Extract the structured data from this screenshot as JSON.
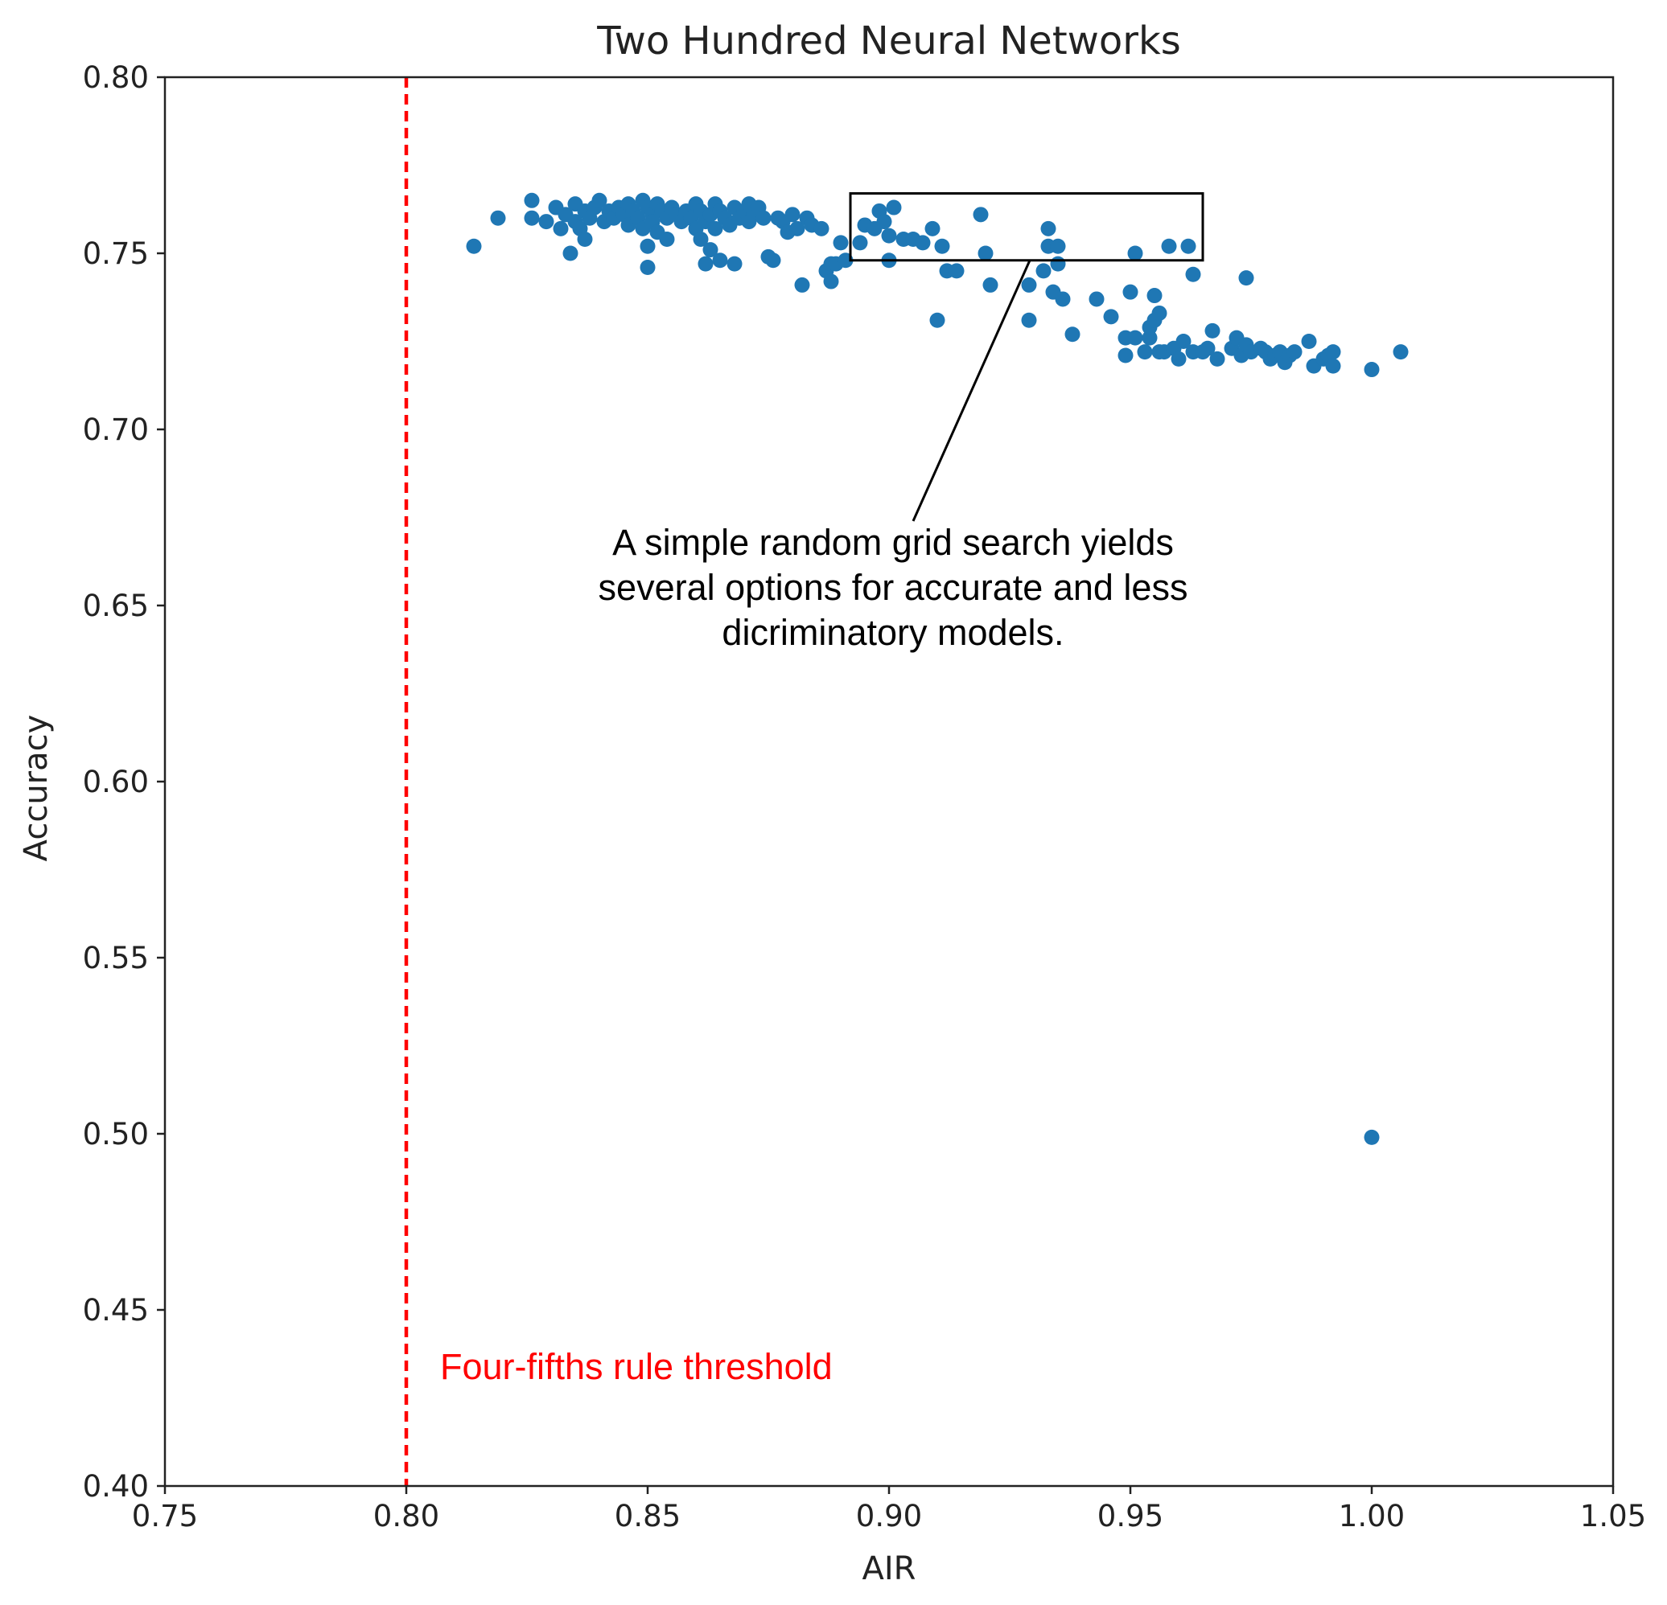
{
  "chart_data": {
    "type": "scatter",
    "title": "Two Hundred Neural Networks",
    "xlabel": "AIR",
    "ylabel": "Accuracy",
    "xlim": [
      0.75,
      1.05
    ],
    "ylim": [
      0.4,
      0.8
    ],
    "xticks": [
      "0.75",
      "0.80",
      "0.85",
      "0.90",
      "0.95",
      "1.00",
      "1.05"
    ],
    "yticks": [
      "0.40",
      "0.45",
      "0.50",
      "0.55",
      "0.60",
      "0.65",
      "0.70",
      "0.75",
      "0.80"
    ],
    "grid": false,
    "marker_color": "#1f77b4",
    "threshold": {
      "x": 0.8,
      "label": "Four-fifths rule threshold",
      "color": "#ff0000",
      "style": "dashed"
    },
    "highlight_box": {
      "x_range": [
        0.892,
        0.965
      ],
      "y_range": [
        0.748,
        0.767
      ]
    },
    "annotation": {
      "lines": [
        "A simple random grid search yields",
        "several options for accurate and less",
        "dicriminatory models."
      ]
    },
    "points": [
      [
        0.814,
        0.752
      ],
      [
        0.819,
        0.76
      ],
      [
        0.826,
        0.765
      ],
      [
        0.826,
        0.76
      ],
      [
        0.829,
        0.759
      ],
      [
        0.831,
        0.763
      ],
      [
        0.832,
        0.757
      ],
      [
        0.833,
        0.761
      ],
      [
        0.834,
        0.75
      ],
      [
        0.835,
        0.764
      ],
      [
        0.835,
        0.759
      ],
      [
        0.836,
        0.757
      ],
      [
        0.837,
        0.762
      ],
      [
        0.837,
        0.754
      ],
      [
        0.838,
        0.76
      ],
      [
        0.839,
        0.763
      ],
      [
        0.84,
        0.765
      ],
      [
        0.841,
        0.759
      ],
      [
        0.842,
        0.762
      ],
      [
        0.843,
        0.76
      ],
      [
        0.844,
        0.763
      ],
      [
        0.845,
        0.761
      ],
      [
        0.846,
        0.764
      ],
      [
        0.846,
        0.758
      ],
      [
        0.847,
        0.762
      ],
      [
        0.848,
        0.76
      ],
      [
        0.849,
        0.765
      ],
      [
        0.849,
        0.757
      ],
      [
        0.85,
        0.763
      ],
      [
        0.85,
        0.752
      ],
      [
        0.85,
        0.746
      ],
      [
        0.851,
        0.761
      ],
      [
        0.851,
        0.759
      ],
      [
        0.852,
        0.764
      ],
      [
        0.852,
        0.756
      ],
      [
        0.853,
        0.762
      ],
      [
        0.854,
        0.76
      ],
      [
        0.854,
        0.754
      ],
      [
        0.855,
        0.763
      ],
      [
        0.856,
        0.761
      ],
      [
        0.857,
        0.759
      ],
      [
        0.858,
        0.762
      ],
      [
        0.859,
        0.76
      ],
      [
        0.86,
        0.757
      ],
      [
        0.86,
        0.764
      ],
      [
        0.861,
        0.762
      ],
      [
        0.861,
        0.754
      ],
      [
        0.862,
        0.759
      ],
      [
        0.862,
        0.747
      ],
      [
        0.863,
        0.761
      ],
      [
        0.863,
        0.751
      ],
      [
        0.864,
        0.764
      ],
      [
        0.864,
        0.757
      ],
      [
        0.865,
        0.762
      ],
      [
        0.865,
        0.748
      ],
      [
        0.866,
        0.76
      ],
      [
        0.867,
        0.758
      ],
      [
        0.868,
        0.763
      ],
      [
        0.868,
        0.747
      ],
      [
        0.869,
        0.76
      ],
      [
        0.87,
        0.762
      ],
      [
        0.871,
        0.764
      ],
      [
        0.871,
        0.759
      ],
      [
        0.872,
        0.761
      ],
      [
        0.873,
        0.763
      ],
      [
        0.874,
        0.76
      ],
      [
        0.875,
        0.749
      ],
      [
        0.876,
        0.748
      ],
      [
        0.877,
        0.76
      ],
      [
        0.878,
        0.759
      ],
      [
        0.879,
        0.756
      ],
      [
        0.88,
        0.761
      ],
      [
        0.881,
        0.757
      ],
      [
        0.882,
        0.741
      ],
      [
        0.883,
        0.76
      ],
      [
        0.884,
        0.758
      ],
      [
        0.886,
        0.757
      ],
      [
        0.887,
        0.745
      ],
      [
        0.888,
        0.747
      ],
      [
        0.888,
        0.742
      ],
      [
        0.889,
        0.747
      ],
      [
        0.89,
        0.753
      ],
      [
        0.891,
        0.748
      ],
      [
        0.894,
        0.753
      ],
      [
        0.895,
        0.758
      ],
      [
        0.897,
        0.757
      ],
      [
        0.898,
        0.762
      ],
      [
        0.899,
        0.759
      ],
      [
        0.9,
        0.755
      ],
      [
        0.9,
        0.748
      ],
      [
        0.901,
        0.763
      ],
      [
        0.903,
        0.754
      ],
      [
        0.905,
        0.754
      ],
      [
        0.907,
        0.753
      ],
      [
        0.909,
        0.757
      ],
      [
        0.91,
        0.731
      ],
      [
        0.911,
        0.752
      ],
      [
        0.912,
        0.745
      ],
      [
        0.914,
        0.745
      ],
      [
        0.919,
        0.761
      ],
      [
        0.92,
        0.75
      ],
      [
        0.921,
        0.741
      ],
      [
        0.929,
        0.741
      ],
      [
        0.929,
        0.731
      ],
      [
        0.932,
        0.745
      ],
      [
        0.933,
        0.757
      ],
      [
        0.933,
        0.752
      ],
      [
        0.934,
        0.739
      ],
      [
        0.935,
        0.747
      ],
      [
        0.935,
        0.752
      ],
      [
        0.936,
        0.737
      ],
      [
        0.938,
        0.727
      ],
      [
        0.943,
        0.737
      ],
      [
        0.946,
        0.732
      ],
      [
        0.949,
        0.721
      ],
      [
        0.949,
        0.726
      ],
      [
        0.95,
        0.739
      ],
      [
        0.951,
        0.726
      ],
      [
        0.951,
        0.75
      ],
      [
        0.953,
        0.722
      ],
      [
        0.954,
        0.726
      ],
      [
        0.954,
        0.729
      ],
      [
        0.955,
        0.731
      ],
      [
        0.955,
        0.738
      ],
      [
        0.956,
        0.733
      ],
      [
        0.956,
        0.722
      ],
      [
        0.957,
        0.722
      ],
      [
        0.958,
        0.752
      ],
      [
        0.959,
        0.723
      ],
      [
        0.96,
        0.72
      ],
      [
        0.961,
        0.725
      ],
      [
        0.962,
        0.752
      ],
      [
        0.963,
        0.744
      ],
      [
        0.963,
        0.722
      ],
      [
        0.965,
        0.722
      ],
      [
        0.966,
        0.723
      ],
      [
        0.967,
        0.728
      ],
      [
        0.968,
        0.72
      ],
      [
        0.971,
        0.723
      ],
      [
        0.972,
        0.726
      ],
      [
        0.973,
        0.721
      ],
      [
        0.974,
        0.724
      ],
      [
        0.974,
        0.743
      ],
      [
        0.975,
        0.722
      ],
      [
        0.977,
        0.723
      ],
      [
        0.978,
        0.722
      ],
      [
        0.979,
        0.72
      ],
      [
        0.98,
        0.721
      ],
      [
        0.981,
        0.722
      ],
      [
        0.982,
        0.719
      ],
      [
        0.983,
        0.721
      ],
      [
        0.984,
        0.722
      ],
      [
        0.987,
        0.725
      ],
      [
        0.988,
        0.718
      ],
      [
        0.99,
        0.72
      ],
      [
        0.991,
        0.721
      ],
      [
        0.992,
        0.722
      ],
      [
        0.992,
        0.718
      ],
      [
        1.0,
        0.499
      ],
      [
        1.0,
        0.717
      ],
      [
        1.006,
        0.722
      ]
    ]
  }
}
